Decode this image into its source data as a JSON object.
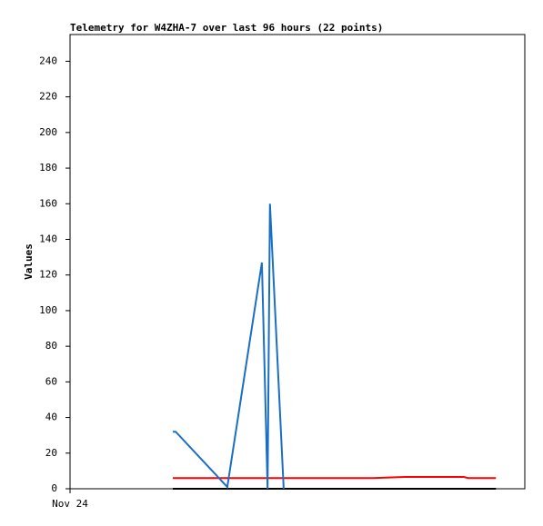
{
  "chart_data": {
    "type": "line",
    "title": "Telemetry for W4ZHA-7 over last 96 hours (22 points)",
    "y_label": "Values",
    "xlim": [
      0,
      96
    ],
    "xticks": [
      {
        "value": 0,
        "label": "Nov 24"
      }
    ],
    "ylim": [
      0,
      255
    ],
    "yticks": [
      0,
      20,
      40,
      60,
      80,
      100,
      120,
      140,
      160,
      180,
      200,
      220,
      240
    ],
    "series": [
      {
        "color": "#ff0000",
        "x": [
          21.7,
          63.9,
          70.7,
          83.1,
          84.1,
          89.9
        ],
        "values": [
          6,
          6,
          6.6,
          6.6,
          6,
          6
        ]
      },
      {
        "color": "#000000",
        "x": [
          21.7,
          89.9
        ],
        "values": [
          0,
          0
        ]
      },
      {
        "color": "#1a6fc4",
        "x": [
          21.7,
          22.3,
          33.2,
          40.5,
          41.7,
          42.2,
          45.1
        ],
        "values": [
          32,
          32,
          1,
          127,
          0,
          160,
          0
        ]
      }
    ]
  }
}
